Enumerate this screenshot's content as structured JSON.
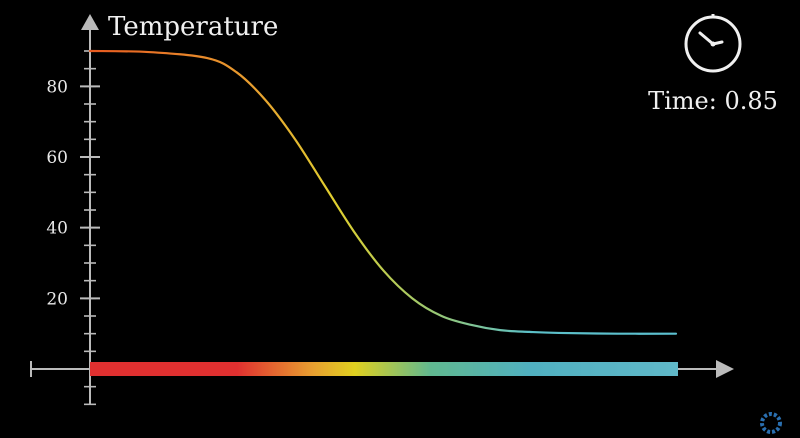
{
  "chart_data": {
    "type": "line",
    "ylabel": "Temperature",
    "yticks": [
      20,
      40,
      60,
      80
    ],
    "ylim": [
      0,
      90
    ],
    "xlim": [
      0,
      1
    ],
    "grid": false,
    "series": [
      {
        "x": [
          0.0,
          0.1,
          0.2,
          0.25,
          0.3,
          0.35,
          0.4,
          0.45,
          0.5,
          0.55,
          0.6,
          0.65,
          0.7,
          0.75,
          0.8,
          0.9,
          1.0
        ],
        "y": [
          90,
          89.7,
          88,
          84,
          76,
          65,
          52,
          39,
          28,
          20,
          15,
          12.5,
          11,
          10.5,
          10.2,
          10,
          10
        ]
      }
    ],
    "color_bar": {
      "stops": [
        "#e03030",
        "#e03030",
        "#e8a030",
        "#e0d020",
        "#60b890",
        "#50b0c0",
        "#60b8c8"
      ],
      "offsets": [
        0,
        0.25,
        0.38,
        0.45,
        0.58,
        0.75,
        1
      ]
    }
  },
  "clock": {
    "label": "Time: 0.85",
    "icon": "clock-icon"
  },
  "colors": {
    "axis": "#bbbbbb",
    "curve_start": "#e85a20",
    "curve_mid": "#e8c030",
    "curve_end": "#5cc0d0"
  }
}
